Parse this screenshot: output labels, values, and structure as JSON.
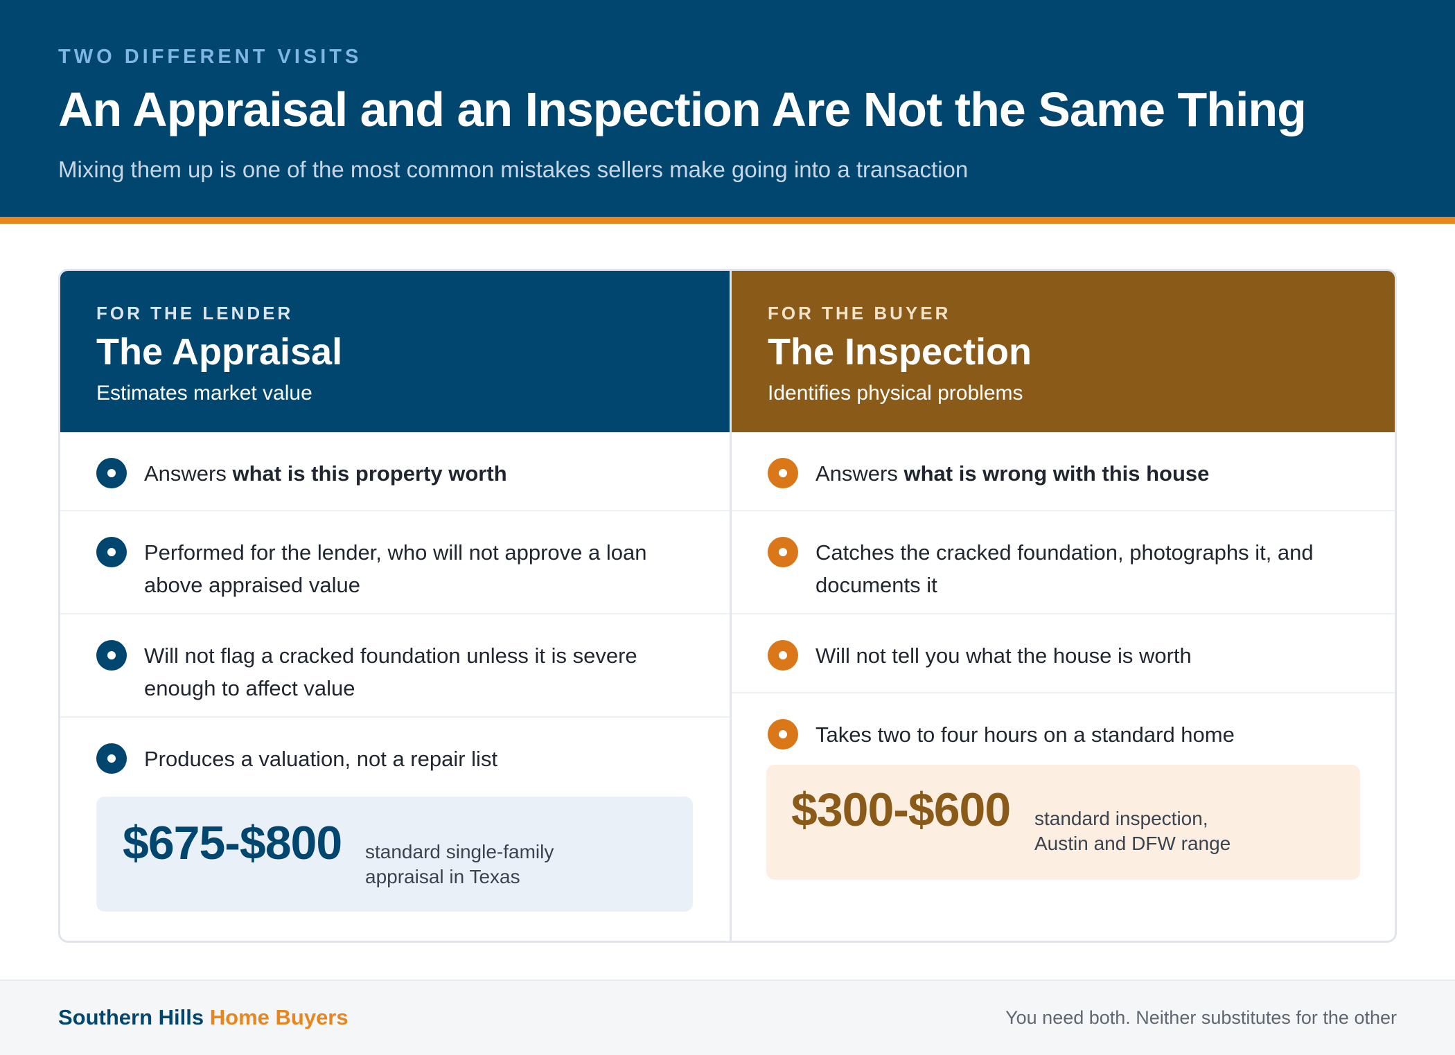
{
  "header": {
    "eyebrow": "TWO DIFFERENT VISITS",
    "title": "An Appraisal and an Inspection Are Not the Same Thing",
    "subtitle": "Mixing them up is one of the most common mistakes sellers make going into a transaction"
  },
  "colors": {
    "navy": "#01466f",
    "brown": "#8a5a19",
    "orange": "#e8861d",
    "bullet_orange": "#d97719"
  },
  "appraisal": {
    "eyebrow": "FOR THE LENDER",
    "title": "The Appraisal",
    "subtitle": "Estimates market value",
    "items": [
      {
        "text": "Answers ",
        "bold": "what is this property worth"
      },
      {
        "text": "Performed for the lender, who will not approve a loan above appraised value",
        "bold": ""
      },
      {
        "text": "Will not flag a cracked foundation unless it is severe enough to affect value",
        "bold": ""
      },
      {
        "text": "Produces a valuation, not a repair list",
        "bold": ""
      }
    ],
    "price": "$675-$800",
    "price_label_1": "standard single-family",
    "price_label_2": "appraisal in Texas"
  },
  "inspection": {
    "eyebrow": "FOR THE BUYER",
    "title": "The Inspection",
    "subtitle": "Identifies physical problems",
    "items": [
      {
        "text": "Answers ",
        "bold": "what is wrong with this house"
      },
      {
        "text": "Catches the cracked foundation, photographs it, and documents it",
        "bold": ""
      },
      {
        "text": "Will not tell you what the house is worth",
        "bold": ""
      },
      {
        "text": "Takes two to four hours on a standard home",
        "bold": ""
      }
    ],
    "price": "$300-$600",
    "price_label_1": "standard inspection,",
    "price_label_2": "Austin and DFW range"
  },
  "footer": {
    "brand_part_1": "Southern Hills",
    "brand_part_2": "Home Buyers",
    "tagline": "You need both. Neither substitutes for the other"
  }
}
